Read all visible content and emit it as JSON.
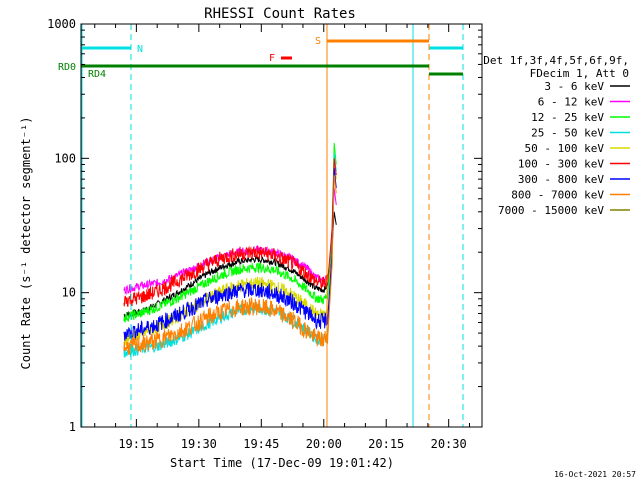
{
  "chart_data": {
    "type": "line",
    "title": "RHESSI Count Rates",
    "xlabel": "Start Time (17-Dec-09 19:01:42)",
    "ylabel": "Count Rate (s⁻¹ detector segment⁻¹)",
    "y_scale": "log",
    "ylim": [
      1,
      1000
    ],
    "xlim": [
      "19:01:42",
      "20:38:00"
    ],
    "x_ticks": [
      "19:15",
      "19:30",
      "19:45",
      "20:00",
      "20:15",
      "20:30"
    ],
    "y_ticks": [
      "1",
      "10",
      "100",
      "1000"
    ],
    "legend": {
      "position": "right",
      "header": [
        "Det 1f,3f,4f,5f,6f,9f,",
        "FDecim 1, Att 0"
      ],
      "entries": [
        {
          "name": "3 - 6 keV",
          "color": "#000000"
        },
        {
          "name": "6 - 12 keV",
          "color": "#ff00ff"
        },
        {
          "name": "12 - 25 keV",
          "color": "#00ff00"
        },
        {
          "name": "25 - 50 keV",
          "color": "#00e0e0"
        },
        {
          "name": "50 - 100 keV",
          "color": "#d8d800"
        },
        {
          "name": "100 - 300 keV",
          "color": "#ff0000"
        },
        {
          "name": "300 - 800 keV",
          "color": "#0000ff"
        },
        {
          "name": "800 - 7000 keV",
          "color": "#ff8000"
        },
        {
          "name": "7000 - 15000 keV",
          "color": "#808000"
        }
      ]
    },
    "x_times": [
      "19:12",
      "19:16",
      "19:20",
      "19:24",
      "19:28",
      "19:32",
      "19:36",
      "19:40",
      "19:44",
      "19:48",
      "19:52",
      "19:56",
      "19:58",
      "20:00",
      "20:01",
      "20:02",
      "20:02:30",
      "20:03"
    ],
    "series": [
      {
        "name": "3 - 6 keV",
        "color": "#000000",
        "values": [
          6.8,
          7.2,
          8.2,
          9.6,
          11.5,
          13.8,
          15.8,
          17.2,
          17.8,
          17.0,
          15.0,
          12.2,
          10.8,
          10.5,
          11.5,
          22,
          40,
          32
        ]
      },
      {
        "name": "6 - 12 keV",
        "color": "#ff00ff",
        "values": [
          10.5,
          11.2,
          11.8,
          13.0,
          14.8,
          17.0,
          18.8,
          20.2,
          20.8,
          20.0,
          18.2,
          15.2,
          13.0,
          12.2,
          13.0,
          25,
          60,
          45
        ]
      },
      {
        "name": "12 - 25 keV",
        "color": "#00ff00",
        "values": [
          6.5,
          7.0,
          7.8,
          8.8,
          10.2,
          12.0,
          13.8,
          15.0,
          15.5,
          14.8,
          13.0,
          10.5,
          9.2,
          8.8,
          9.8,
          30,
          130,
          90
        ]
      },
      {
        "name": "25 - 50 keV",
        "color": "#00e0e0",
        "values": [
          3.6,
          3.8,
          4.0,
          4.4,
          5.0,
          5.8,
          6.7,
          7.4,
          7.7,
          7.3,
          6.4,
          5.2,
          4.6,
          4.4,
          5.0,
          20,
          110,
          80
        ]
      },
      {
        "name": "50 - 100 keV",
        "color": "#d8d800",
        "values": [
          4.5,
          4.9,
          5.5,
          6.4,
          7.6,
          9.0,
          10.4,
          11.4,
          11.8,
          11.2,
          9.8,
          8.0,
          7.0,
          6.7,
          7.3,
          22,
          95,
          70
        ]
      },
      {
        "name": "100 - 300 keV",
        "color": "#ff0000",
        "values": [
          8.8,
          9.2,
          10.2,
          11.8,
          13.8,
          16.2,
          18.3,
          19.6,
          20.0,
          19.0,
          16.8,
          13.8,
          12.2,
          11.6,
          12.5,
          30,
          100,
          75
        ]
      },
      {
        "name": "300 - 800 keV",
        "color": "#0000ff",
        "values": [
          5.0,
          5.3,
          5.8,
          6.6,
          7.6,
          8.8,
          9.8,
          10.4,
          10.5,
          9.9,
          8.7,
          7.1,
          6.3,
          6.0,
          6.6,
          20,
          85,
          60
        ]
      },
      {
        "name": "800 - 7000 keV",
        "color": "#ff8000",
        "values": [
          3.9,
          4.1,
          4.4,
          4.9,
          5.6,
          6.5,
          7.3,
          7.8,
          7.9,
          7.4,
          6.4,
          5.2,
          4.6,
          4.4,
          4.9,
          16,
          75,
          55
        ]
      }
    ],
    "annotations": [
      {
        "label": "N",
        "color": "#00e0e0"
      },
      {
        "label": "S",
        "color": "#ff8000"
      },
      {
        "label": "F",
        "color": "#ff0000"
      },
      {
        "label": "RD0",
        "color": "#008000"
      },
      {
        "label": "RD4",
        "color": "#008000"
      }
    ],
    "footer": "16-Oct-2021 20:57"
  }
}
